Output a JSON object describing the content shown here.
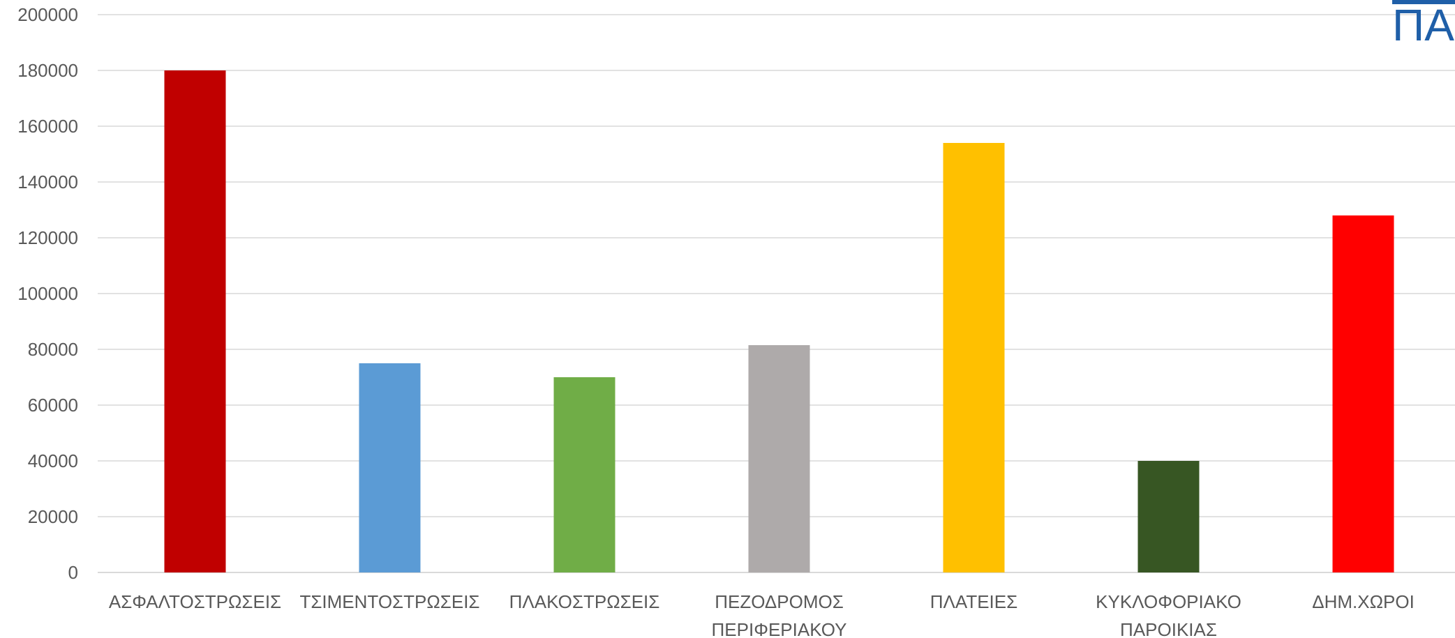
{
  "chart_data": {
    "type": "bar",
    "title": "",
    "xlabel": "",
    "ylabel": "",
    "ylim": [
      0,
      200000
    ],
    "yticks": [
      0,
      20000,
      40000,
      60000,
      80000,
      100000,
      120000,
      140000,
      160000,
      180000,
      200000
    ],
    "grid": true,
    "legend": "none",
    "categories": [
      [
        "ΑΣΦΑΛΤΟΣΤΡΩΣΕΙΣ"
      ],
      [
        "ΤΣΙΜΕΝΤΟΣΤΡΩΣΕΙΣ"
      ],
      [
        "ΠΛΑΚΟΣΤΡΩΣΕΙΣ"
      ],
      [
        "ΠΕΖΟΔΡΟΜΟΣ",
        "ΠΕΡΙΦΕΡΙΑΚΟΥ"
      ],
      [
        "ΠΛΑΤΕΙΕΣ"
      ],
      [
        "ΚΥΚΛΟΦΟΡΙΑΚΟ",
        "ΠΑΡΟΙΚΙΑΣ"
      ],
      [
        "ΔΗΜ.ΧΩΡΟΙ"
      ]
    ],
    "values": [
      180000,
      75000,
      70000,
      81500,
      154000,
      40000,
      128000
    ],
    "colors": [
      "#C00000",
      "#5B9BD5",
      "#70AD47",
      "#AEAAAA",
      "#FFC000",
      "#375623",
      "#FF0000"
    ]
  },
  "logo": {
    "visible_text": "ΠΑ"
  }
}
